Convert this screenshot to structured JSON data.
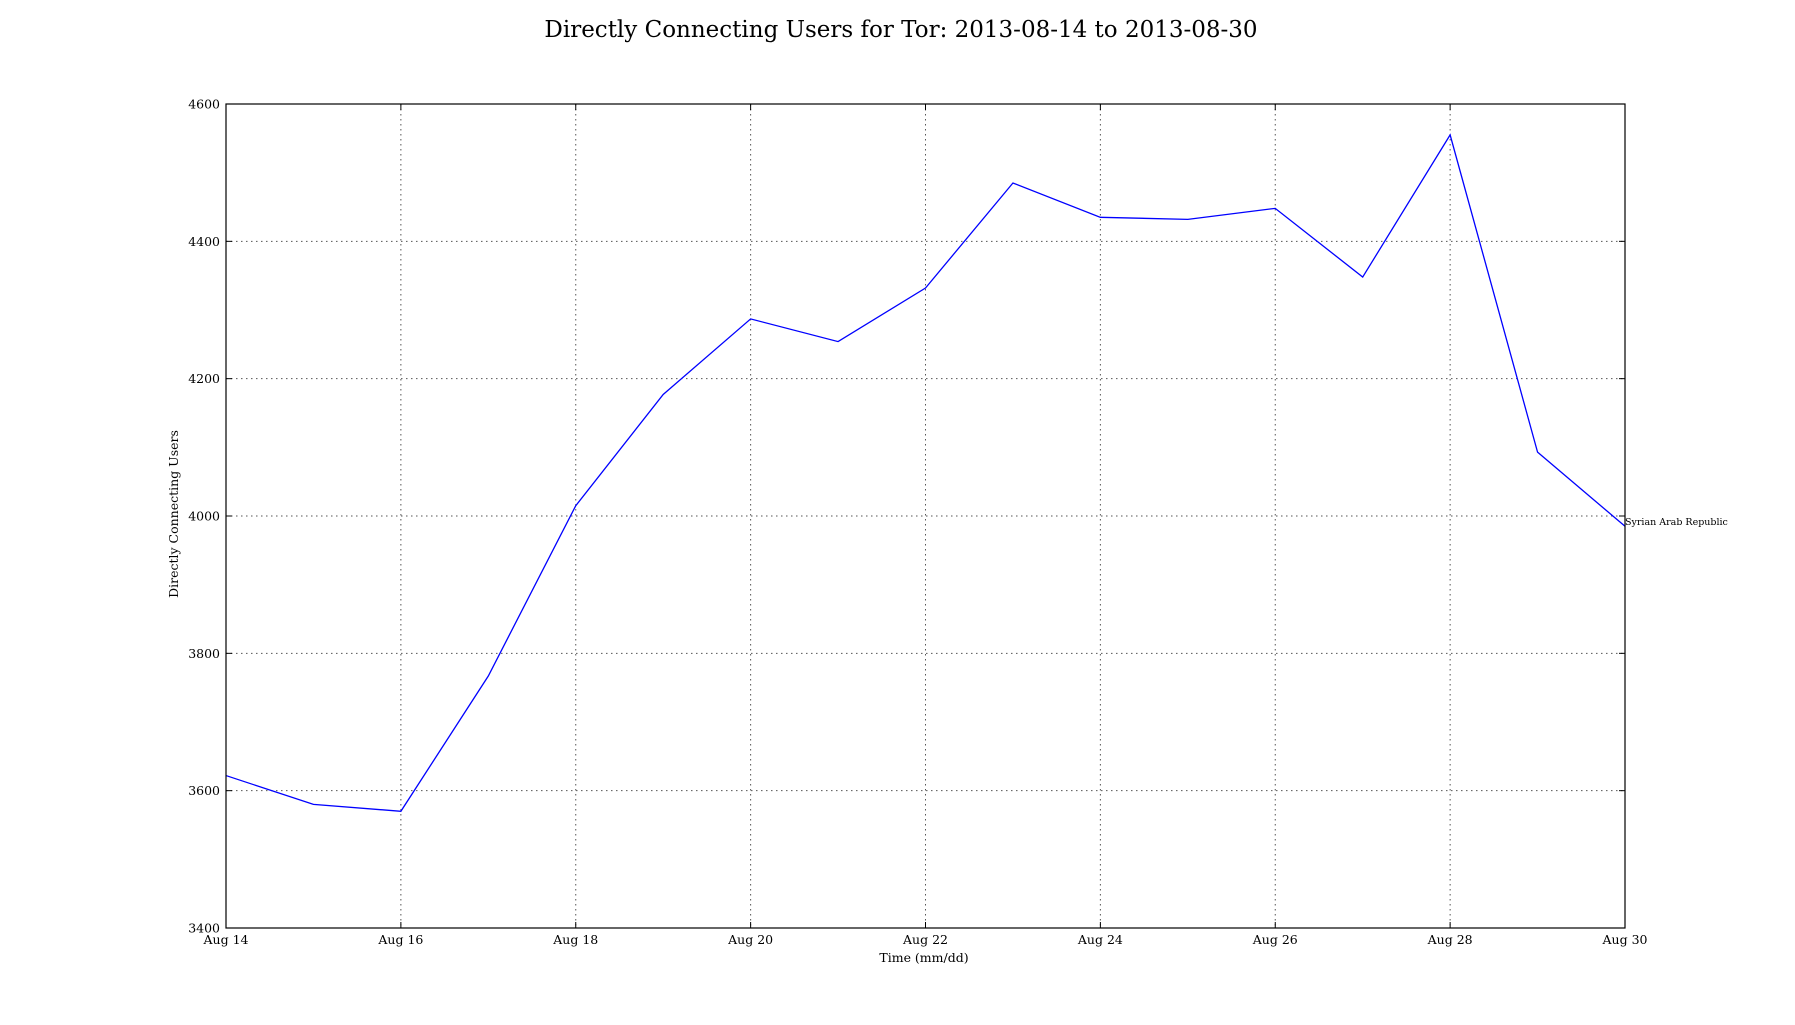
{
  "chart_data": {
    "type": "line",
    "title": "Directly Connecting Users for Tor: 2013-08-14 to 2013-08-30",
    "xlabel": "Time (mm/dd)",
    "ylabel": "Directly Connecting Users",
    "ylim": [
      3400,
      4600
    ],
    "y_ticks": [
      3400,
      3600,
      3800,
      4000,
      4200,
      4400,
      4600
    ],
    "x_dates": [
      "2013-08-14",
      "2013-08-15",
      "2013-08-16",
      "2013-08-17",
      "2013-08-18",
      "2013-08-19",
      "2013-08-20",
      "2013-08-21",
      "2013-08-22",
      "2013-08-23",
      "2013-08-24",
      "2013-08-25",
      "2013-08-26",
      "2013-08-27",
      "2013-08-28",
      "2013-08-29",
      "2013-08-30"
    ],
    "x_tick_labels": [
      "Aug 14",
      "Aug 16",
      "Aug 18",
      "Aug 20",
      "Aug 22",
      "Aug 24",
      "Aug 26",
      "Aug 28",
      "Aug 30"
    ],
    "grid": true,
    "series": [
      {
        "name": "Syrian Arab Republic",
        "color": "#0000ff",
        "values": [
          3622,
          3580,
          3570,
          3767,
          4015,
          4177,
          4287,
          4254,
          4332,
          4485,
          4435,
          4432,
          4448,
          4348,
          4555,
          4093,
          3985
        ]
      }
    ]
  }
}
